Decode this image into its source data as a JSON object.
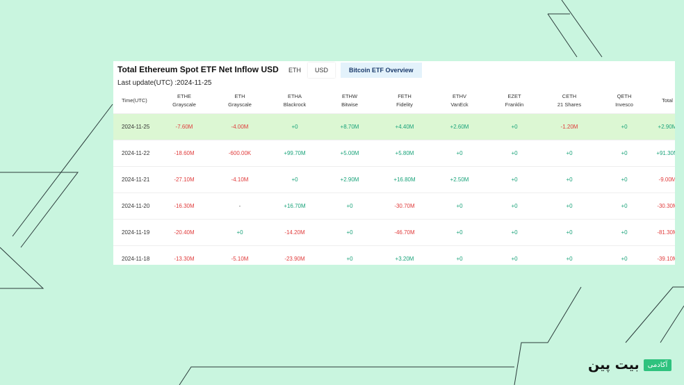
{
  "title": "Total Ethereum Spot ETF Net Inflow USD",
  "tabs": [
    {
      "label": "ETH"
    },
    {
      "label": "USD"
    },
    {
      "label": "Bitcoin ETF Overview"
    }
  ],
  "last_update": "Last update(UTC) :2024-11-25",
  "columns": [
    {
      "ticker": "Time(UTC)",
      "issuer": ""
    },
    {
      "ticker": "ETHE",
      "issuer": "Grayscale"
    },
    {
      "ticker": "ETH",
      "issuer": "Grayscale"
    },
    {
      "ticker": "ETHA",
      "issuer": "Blackrock"
    },
    {
      "ticker": "ETHW",
      "issuer": "Bitwise"
    },
    {
      "ticker": "FETH",
      "issuer": "Fidelity"
    },
    {
      "ticker": "ETHV",
      "issuer": "VanEck"
    },
    {
      "ticker": "EZET",
      "issuer": "Franklin"
    },
    {
      "ticker": "CETH",
      "issuer": "21 Shares"
    },
    {
      "ticker": "QETH",
      "issuer": "Invesco"
    },
    {
      "ticker": "Total",
      "issuer": ""
    }
  ],
  "rows": [
    {
      "date": "2024-11-25",
      "cells": [
        "-7.60M",
        "-4.00M",
        "+0",
        "+8.70M",
        "+4.40M",
        "+2.60M",
        "+0",
        "-1.20M",
        "+0",
        "+2.90M"
      ]
    },
    {
      "date": "2024-11-22",
      "cells": [
        "-18.60M",
        "-600.00K",
        "+99.70M",
        "+5.00M",
        "+5.80M",
        "+0",
        "+0",
        "+0",
        "+0",
        "+91.30M"
      ]
    },
    {
      "date": "2024-11-21",
      "cells": [
        "-27.10M",
        "-4.10M",
        "+0",
        "+2.90M",
        "+16.80M",
        "+2.50M",
        "+0",
        "+0",
        "+0",
        "-9.00M"
      ]
    },
    {
      "date": "2024-11-20",
      "cells": [
        "-16.30M",
        "-",
        "+16.70M",
        "+0",
        "-30.70M",
        "+0",
        "+0",
        "+0",
        "+0",
        "-30.30M"
      ]
    },
    {
      "date": "2024-11-19",
      "cells": [
        "-20.40M",
        "+0",
        "-14.20M",
        "+0",
        "-46.70M",
        "+0",
        "+0",
        "+0",
        "+0",
        "-81.30M"
      ]
    },
    {
      "date": "2024-11-18",
      "cells": [
        "-13.30M",
        "-5.10M",
        "-23.90M",
        "+0",
        "+3.20M",
        "+0",
        "+0",
        "+0",
        "+0",
        "-39.10M"
      ]
    }
  ],
  "logo": {
    "text": "بیت پین",
    "badge": "آکادمی"
  },
  "colors": {
    "negative": "#e03c3c",
    "positive": "#1aa37a",
    "highlight_row": "#dcf7d3",
    "background": "#c9f5df",
    "logo_badge": "#2ec27e"
  }
}
